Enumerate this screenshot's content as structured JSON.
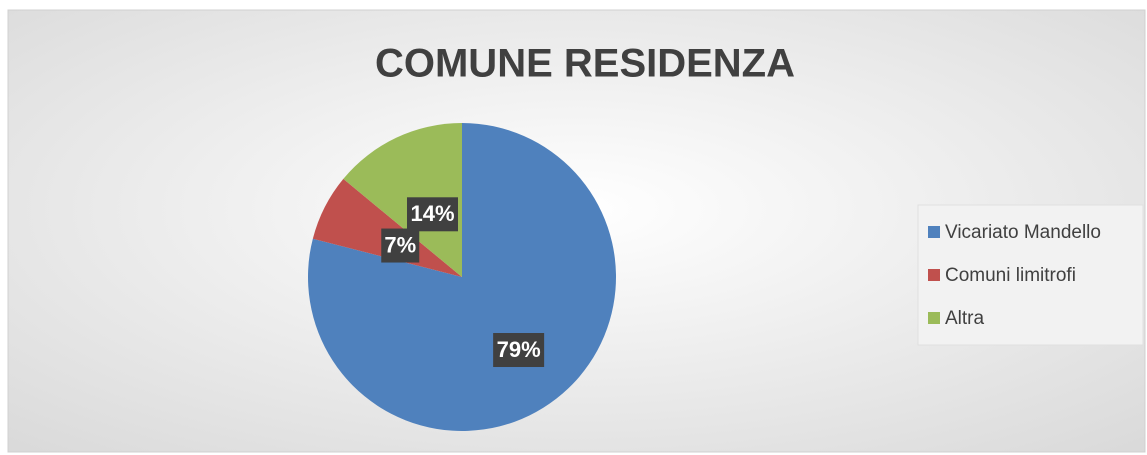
{
  "chart_data": {
    "type": "pie",
    "title": "COMUNE RESIDENZA",
    "categories": [
      "Vicariato Mandello",
      "Comuni limitrofi",
      "Altra"
    ],
    "values": [
      79,
      7,
      14
    ],
    "value_labels": [
      "79%",
      "7%",
      "14%"
    ],
    "colors": [
      "#4f81bd",
      "#c0504d",
      "#9bbb59"
    ],
    "legend": "right"
  }
}
